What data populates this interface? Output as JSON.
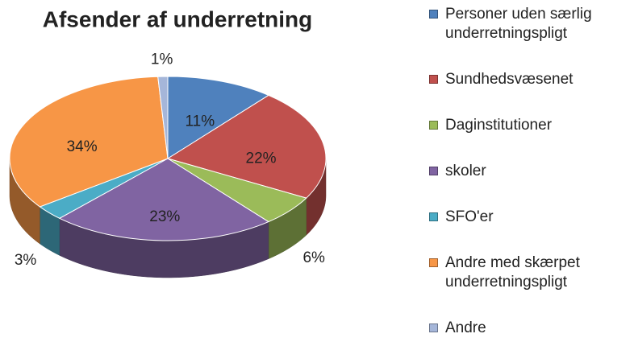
{
  "chart_data": {
    "type": "pie",
    "title": "Afsender af underretning",
    "categories": [
      "Personer uden særlig underretningspligt",
      "Sundhedsvæsenet",
      "Daginstitutioner",
      "skoler",
      "SFO'er",
      "Andre med skærpet underretningspligt",
      "Andre"
    ],
    "values": [
      11,
      22,
      6,
      23,
      3,
      34,
      1
    ],
    "value_labels": [
      "11%",
      "22%",
      "6%",
      "23%",
      "3%",
      "34%",
      "1%"
    ],
    "colors": [
      "#4f81bd",
      "#c0504d",
      "#9bbb59",
      "#8064a2",
      "#4bacc6",
      "#f79646",
      "#a5b6d9"
    ],
    "legend": "right"
  }
}
